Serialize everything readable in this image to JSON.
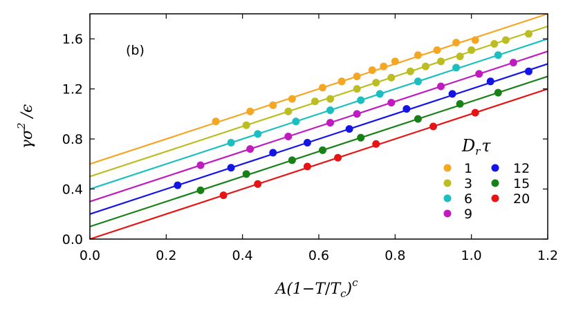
{
  "chart_data": {
    "type": "scatter",
    "panel_label": "(b)",
    "xlabel": "A(1−T/T_c)^c",
    "xlabel_parts": {
      "pre": "A(1−",
      "t": "T",
      "slash": "/",
      "tc": "T",
      "tc_sub": "c",
      "close": ")",
      "sup": "c"
    },
    "ylabel": "γσ²/ϵ",
    "ylabel_parts": {
      "gamma": "γ",
      "sigma": "σ",
      "sup": "2",
      "rest": " /ϵ"
    },
    "xlim": [
      0.0,
      1.2
    ],
    "ylim": [
      0.0,
      1.8
    ],
    "xticks": [
      "0.0",
      "0.2",
      "0.4",
      "0.6",
      "0.8",
      "1.0",
      "1.2"
    ],
    "yticks": [
      "0.0",
      "0.4",
      "0.8",
      "1.2",
      "1.6"
    ],
    "xtick_values": [
      0.0,
      0.2,
      0.4,
      0.6,
      0.8,
      1.0,
      1.2
    ],
    "ytick_values": [
      0.0,
      0.4,
      0.8,
      1.2,
      1.6
    ],
    "legend_title": "D_r τ",
    "legend_title_parts": {
      "d": "D",
      "sub": "r",
      "tau": "τ"
    },
    "slope": 1.0,
    "series": [
      {
        "name": "1",
        "color": "#f5a623",
        "intercept": 0.6,
        "x": [
          0.33,
          0.42,
          0.48,
          0.53,
          0.61,
          0.66,
          0.7,
          0.74,
          0.77,
          0.8,
          0.86,
          0.91,
          0.96,
          1.01
        ],
        "y": [
          0.94,
          1.02,
          1.07,
          1.12,
          1.21,
          1.26,
          1.3,
          1.35,
          1.38,
          1.42,
          1.47,
          1.51,
          1.57,
          1.59
        ]
      },
      {
        "name": "3",
        "color": "#bcbd22",
        "intercept": 0.5,
        "x": [
          0.41,
          0.52,
          0.59,
          0.63,
          0.7,
          0.75,
          0.79,
          0.84,
          0.88,
          0.92,
          0.97,
          1.0,
          1.06,
          1.09,
          1.15
        ],
        "y": [
          0.91,
          1.02,
          1.1,
          1.12,
          1.2,
          1.25,
          1.29,
          1.34,
          1.38,
          1.42,
          1.46,
          1.51,
          1.56,
          1.59,
          1.64
        ]
      },
      {
        "name": "6",
        "color": "#1bbfbf",
        "intercept": 0.4,
        "x": [
          0.37,
          0.44,
          0.54,
          0.63,
          0.71,
          0.76,
          0.86,
          0.96,
          1.07
        ],
        "y": [
          0.77,
          0.84,
          0.94,
          1.03,
          1.11,
          1.16,
          1.26,
          1.37,
          1.47
        ]
      },
      {
        "name": "9",
        "color": "#bf1bbf",
        "intercept": 0.3,
        "x": [
          0.29,
          0.42,
          0.52,
          0.63,
          0.7,
          0.79,
          0.92,
          1.02,
          1.11
        ],
        "y": [
          0.59,
          0.72,
          0.82,
          0.93,
          1.0,
          1.09,
          1.22,
          1.32,
          1.41
        ]
      },
      {
        "name": "12",
        "color": "#1414e6",
        "intercept": 0.2,
        "x": [
          0.23,
          0.37,
          0.48,
          0.57,
          0.68,
          0.83,
          0.95,
          1.05,
          1.15
        ],
        "y": [
          0.43,
          0.57,
          0.69,
          0.77,
          0.88,
          1.04,
          1.16,
          1.26,
          1.34
        ]
      },
      {
        "name": "15",
        "color": "#178017",
        "intercept": 0.1,
        "x": [
          0.29,
          0.41,
          0.53,
          0.61,
          0.71,
          0.86,
          0.97,
          1.07
        ],
        "y": [
          0.39,
          0.52,
          0.63,
          0.71,
          0.81,
          0.96,
          1.08,
          1.17
        ]
      },
      {
        "name": "20",
        "color": "#e61414",
        "intercept": 0.0,
        "x": [
          0.35,
          0.44,
          0.57,
          0.65,
          0.75,
          0.9,
          1.01
        ],
        "y": [
          0.35,
          0.44,
          0.58,
          0.65,
          0.76,
          0.9,
          1.01
        ]
      }
    ]
  }
}
